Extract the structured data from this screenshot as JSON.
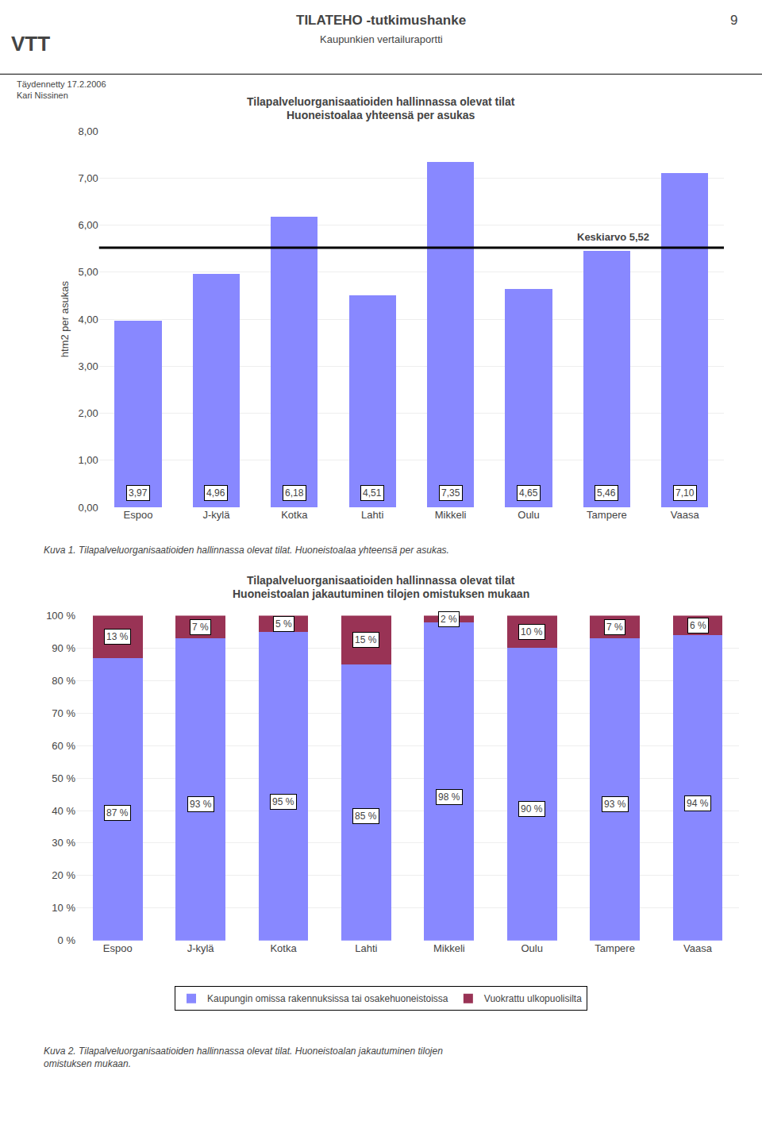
{
  "title": "TILATEHO -tutkimushanke",
  "subtitle": "Kaupunkien vertailuraportti",
  "annotations": [
    "VTT",
    "9",
    "Täydennetty 17.2.2006",
    "Kari Nissinen"
  ],
  "chart_data": [
    {
      "type": "bar",
      "title": "Tilapalveluorganisaatioiden hallinnassa olevat tilat",
      "subtitle": "Huoneistoalaa yhteensä per asukas",
      "ylabel": "htm2 per asukas",
      "categories": [
        "Espoo",
        "J-kylä",
        "Kotka",
        "Lahti",
        "Mikkeli",
        "Oulu",
        "Tampere",
        "Vaasa"
      ],
      "values": [
        3.97,
        4.96,
        6.18,
        4.51,
        7.35,
        4.65,
        5.46,
        7.1
      ],
      "value_labels": [
        "3,97",
        "4,96",
        "6,18",
        "4,51",
        "7,35",
        "4,65",
        "5,46",
        "7,10"
      ],
      "data_labels": true,
      "color": "#8888ff",
      "ylim": [
        0,
        8.0
      ],
      "yticks": [
        {
          "value": 0.0,
          "label": "0,00"
        },
        {
          "value": 1.0,
          "label": "1,00"
        },
        {
          "value": 2.0,
          "label": "2,00"
        },
        {
          "value": 3.0,
          "label": "3,00"
        },
        {
          "value": 4.0,
          "label": "4,00"
        },
        {
          "value": 5.0,
          "label": "5,00"
        },
        {
          "value": 6.0,
          "label": "6,00"
        },
        {
          "value": 7.0,
          "label": "7,00"
        },
        {
          "value": 8.0,
          "label": "8,00"
        }
      ],
      "grid": true,
      "mean_line": {
        "value": 5.52,
        "label": "Keskiarvo 5,52"
      },
      "caption": "Kuva 1. Tilapalveluorganisaatioiden hallinnassa olevat tilat. Huoneistoalaa yhteensä per asukas."
    },
    {
      "type": "bar",
      "stacked": true,
      "title": "Tilapalveluorganisaatioiden hallinnassa olevat tilat",
      "subtitle": "Huoneistoalan jakautuminen tilojen omistuksen mukaan",
      "categories": [
        "Espoo",
        "J-kylä",
        "Kotka",
        "Lahti",
        "Mikkeli",
        "Oulu",
        "Tampere",
        "Vaasa"
      ],
      "series": [
        {
          "name": "Kaupungin omissa rakennuksissa tai osakehuoneistoissa",
          "color": "#8888ff",
          "values": [
            87,
            93,
            95,
            85,
            98,
            90,
            93,
            94
          ],
          "value_labels": [
            "87 %",
            "93 %",
            "95 %",
            "85 %",
            "98 %",
            "90 %",
            "93 %",
            "94 %"
          ]
        },
        {
          "name": "Vuokrattu ulkopuolisilta",
          "color": "#993355",
          "values": [
            13,
            7,
            5,
            15,
            2,
            10,
            7,
            6
          ],
          "value_labels": [
            "13 %",
            "7 %",
            "5 %",
            "15 %",
            "2 %",
            "10 %",
            "7 %",
            "6 %"
          ]
        }
      ],
      "data_labels": true,
      "ylim": [
        0,
        100
      ],
      "yticks": [
        {
          "value": 0,
          "label": "0 %"
        },
        {
          "value": 10,
          "label": "10 %"
        },
        {
          "value": 20,
          "label": "20 %"
        },
        {
          "value": 30,
          "label": "30 %"
        },
        {
          "value": 40,
          "label": "40 %"
        },
        {
          "value": 50,
          "label": "50 %"
        },
        {
          "value": 60,
          "label": "60 %"
        },
        {
          "value": 70,
          "label": "70 %"
        },
        {
          "value": 80,
          "label": "80 %"
        },
        {
          "value": 90,
          "label": "90 %"
        },
        {
          "value": 100,
          "label": "100 %"
        }
      ],
      "grid": true,
      "legend": "bottom",
      "caption": "Kuva 2. Tilapalveluorganisaatioiden hallinnassa olevat tilat. Huoneistoalan jakautuminen tilojen\nomistuksen mukaan."
    }
  ]
}
